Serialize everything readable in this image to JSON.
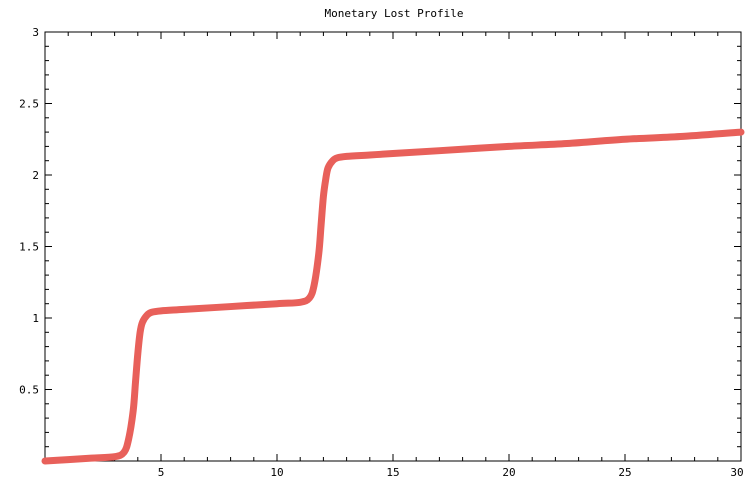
{
  "chart_data": {
    "type": "line",
    "title": "Monetary Lost Profile",
    "xlabel": "",
    "ylabel": "",
    "xlim": [
      0,
      30
    ],
    "ylim": [
      0,
      3
    ],
    "x_ticks": [
      5,
      10,
      15,
      20,
      25,
      30
    ],
    "x_tick_labels": [
      "5",
      "10",
      "15",
      "20",
      "25",
      "30"
    ],
    "y_ticks": [
      0.5,
      1,
      1.5,
      2,
      2.5,
      3
    ],
    "y_tick_labels": [
      "0.5",
      "1",
      "1.5",
      "2",
      "2.5",
      "3"
    ],
    "grid": false,
    "legend": "none",
    "series": [
      {
        "color": "#e8605a",
        "x": [
          0,
          1,
          2,
          3,
          3.4,
          3.6,
          3.8,
          3.9,
          4.0,
          4.1,
          4.2,
          4.4,
          4.6,
          5,
          6,
          8,
          10,
          11,
          11.4,
          11.6,
          11.8,
          11.9,
          12.0,
          12.1,
          12.2,
          12.4,
          12.6,
          13,
          14,
          15,
          17,
          20,
          22.5,
          25,
          27.5,
          30
        ],
        "y": [
          0.0,
          0.01,
          0.02,
          0.03,
          0.06,
          0.15,
          0.35,
          0.55,
          0.75,
          0.9,
          0.97,
          1.02,
          1.04,
          1.05,
          1.06,
          1.08,
          1.1,
          1.11,
          1.14,
          1.23,
          1.45,
          1.65,
          1.85,
          1.97,
          2.05,
          2.1,
          2.12,
          2.13,
          2.14,
          2.15,
          2.17,
          2.2,
          2.22,
          2.25,
          2.27,
          2.3
        ]
      }
    ]
  }
}
